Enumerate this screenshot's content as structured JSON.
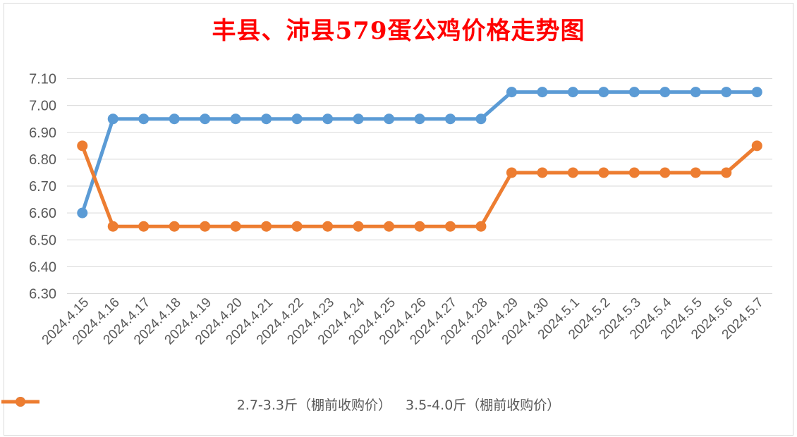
{
  "title": "丰县、沛县579蛋公鸡价格走势图",
  "colors": {
    "title": "#ff0000",
    "grid": "#d9d9d9",
    "text": "#595959"
  },
  "chart_data": {
    "type": "line",
    "title": "丰县、沛县579蛋公鸡价格走势图",
    "xlabel": "",
    "ylabel": "",
    "ylim": [
      6.3,
      7.1
    ],
    "yticks": [
      "7.10",
      "7.00",
      "6.90",
      "6.80",
      "6.70",
      "6.60",
      "6.50",
      "6.40",
      "6.30"
    ],
    "grid": true,
    "legend_position": "bottom",
    "categories": [
      "2024.4.15",
      "2024.4.16",
      "2024.4.17",
      "2024.4.18",
      "2024.4.19",
      "2024.4.20",
      "2024.4.21",
      "2024.4.22",
      "2024.4.23",
      "2024.4.24",
      "2024.4.25",
      "2024.4.26",
      "2024.4.27",
      "2024.4.28",
      "2024.4.29",
      "2024.4.30",
      "2024.5.1",
      "2024.5.2",
      "2024.5.3",
      "2024.5.4",
      "2024.5.5",
      "2024.5.6",
      "2024.5.7"
    ],
    "series": [
      {
        "name": "2.7-3.3斤（棚前收购价）",
        "color": "#5b9bd5",
        "values": [
          6.6,
          6.95,
          6.95,
          6.95,
          6.95,
          6.95,
          6.95,
          6.95,
          6.95,
          6.95,
          6.95,
          6.95,
          6.95,
          6.95,
          7.05,
          7.05,
          7.05,
          7.05,
          7.05,
          7.05,
          7.05,
          7.05,
          7.05
        ]
      },
      {
        "name": "3.5-4.0斤（棚前收购价）",
        "color": "#ed7d31",
        "values": [
          6.85,
          6.55,
          6.55,
          6.55,
          6.55,
          6.55,
          6.55,
          6.55,
          6.55,
          6.55,
          6.55,
          6.55,
          6.55,
          6.55,
          6.75,
          6.75,
          6.75,
          6.75,
          6.75,
          6.75,
          6.75,
          6.75,
          6.85
        ]
      }
    ]
  }
}
